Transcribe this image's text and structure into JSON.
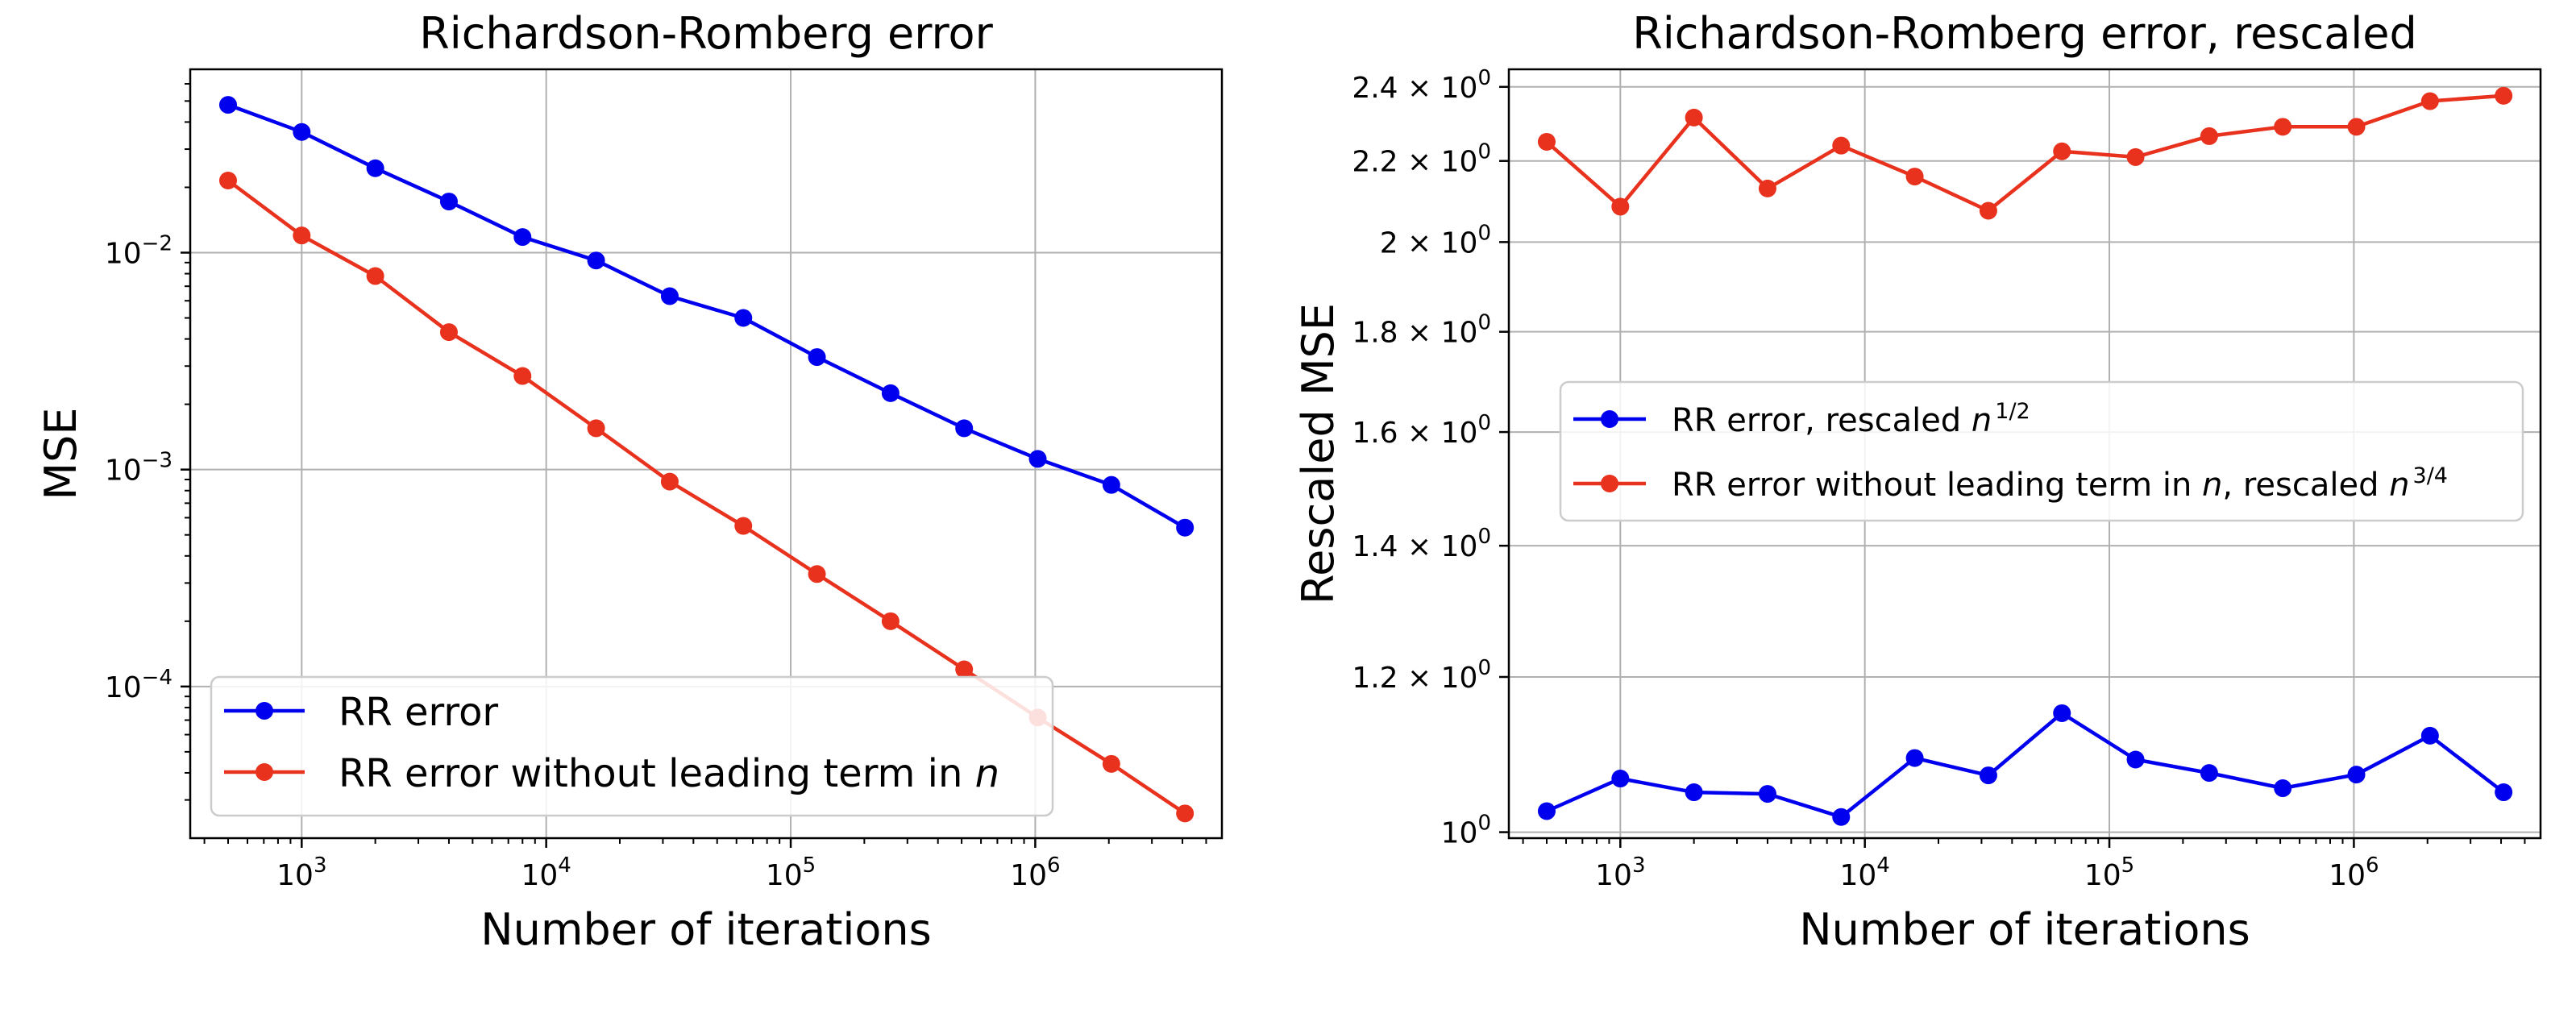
{
  "chart_data": [
    {
      "type": "line",
      "title": "Richardson-Romberg error",
      "xlabel": "Number of iterations",
      "ylabel": "MSE",
      "xscale": "log",
      "yscale": "log",
      "xlim": [
        350,
        5800000
      ],
      "ylim": [
        2e-05,
        0.07
      ],
      "grid": true,
      "legend_position": "lower-left",
      "x_ticks": [
        {
          "value": 1000,
          "base": "10",
          "exp": "3"
        },
        {
          "value": 10000,
          "base": "10",
          "exp": "4"
        },
        {
          "value": 100000,
          "base": "10",
          "exp": "5"
        },
        {
          "value": 1000000,
          "base": "10",
          "exp": "6"
        }
      ],
      "y_ticks": [
        {
          "value": 0.01,
          "base": "10",
          "exp": "−2"
        },
        {
          "value": 0.001,
          "base": "10",
          "exp": "−3"
        },
        {
          "value": 0.0001,
          "base": "10",
          "exp": "−4"
        }
      ],
      "x": [
        500,
        1000,
        2000,
        4000,
        8000,
        16000,
        32000,
        64000,
        128000,
        256000,
        512000,
        1024000,
        2048000,
        4096000
      ],
      "series": [
        {
          "name": "RR error",
          "legend_parts": [
            "RR error"
          ],
          "color": "#0000ee",
          "values": [
            0.048,
            0.036,
            0.0245,
            0.0172,
            0.0118,
            0.0092,
            0.0063,
            0.005,
            0.0033,
            0.00225,
            0.00155,
            0.00112,
            0.00085,
            0.00054
          ]
        },
        {
          "name": "RR error without leading term in n",
          "legend_parts": [
            "RR error without leading term in ",
            "n"
          ],
          "color": "#e8321e",
          "values": [
            0.0215,
            0.012,
            0.0078,
            0.0043,
            0.0027,
            0.00155,
            0.00088,
            0.00055,
            0.00033,
            0.0002,
            0.00012,
            7.2e-05,
            4.4e-05,
            2.6e-05
          ]
        }
      ]
    },
    {
      "type": "line",
      "title": "Richardson-Romberg error, rescaled",
      "xlabel": "Number of iterations",
      "ylabel": "Rescaled MSE",
      "xscale": "log",
      "yscale": "log",
      "xlim": [
        350,
        5800000
      ],
      "ylim": [
        0.993,
        2.45
      ],
      "grid": true,
      "legend_position": "center",
      "x_ticks": [
        {
          "value": 1000,
          "base": "10",
          "exp": "3"
        },
        {
          "value": 10000,
          "base": "10",
          "exp": "4"
        },
        {
          "value": 100000,
          "base": "10",
          "exp": "5"
        },
        {
          "value": 1000000,
          "base": "10",
          "exp": "6"
        }
      ],
      "y_ticks": [
        {
          "value": 1.0,
          "base": "10",
          "exp": "0"
        },
        {
          "value": 1.2,
          "base": "1.2 × 10",
          "exp": "0"
        },
        {
          "value": 1.4,
          "base": "1.4 × 10",
          "exp": "0"
        },
        {
          "value": 1.6,
          "base": "1.6 × 10",
          "exp": "0"
        },
        {
          "value": 1.8,
          "base": "1.8 × 10",
          "exp": "0"
        },
        {
          "value": 2.0,
          "base": "2 × 10",
          "exp": "0"
        },
        {
          "value": 2.2,
          "base": "2.2 × 10",
          "exp": "0"
        },
        {
          "value": 2.4,
          "base": "2.4 × 10",
          "exp": "0"
        }
      ],
      "x": [
        500,
        1000,
        2000,
        4000,
        8000,
        16000,
        32000,
        64000,
        128000,
        256000,
        512000,
        1024000,
        2048000,
        4096000
      ],
      "series": [
        {
          "name": "RR error, rescaled n^1/2",
          "legend_parts": [
            "RR error, rescaled ",
            "n",
            "1/2"
          ],
          "color": "#0000ee",
          "values": [
            1.025,
            1.065,
            1.048,
            1.046,
            1.018,
            1.091,
            1.069,
            1.15,
            1.089,
            1.072,
            1.053,
            1.07,
            1.12,
            1.048
          ]
        },
        {
          "name": "RR error without leading term in n, rescaled n^3/4",
          "legend_parts": [
            "RR error without leading term in ",
            "n",
            ", rescaled ",
            "n",
            "3/4"
          ],
          "color": "#e8321e",
          "values": [
            2.25,
            2.085,
            2.315,
            2.13,
            2.24,
            2.16,
            2.075,
            2.225,
            2.21,
            2.265,
            2.29,
            2.29,
            2.36,
            2.375
          ]
        }
      ]
    }
  ]
}
